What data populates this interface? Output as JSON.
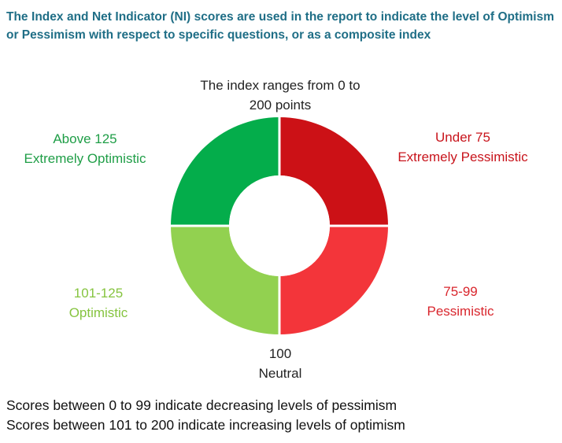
{
  "header": {
    "text": "The Index and Net Indicator (NI) scores are used in the report to indicate the level of Optimism or Pessimism with respect to specific questions, or as a composite index"
  },
  "diagram": {
    "top_label": {
      "line1": "The index ranges from 0 to",
      "line2": "200 points"
    },
    "bottom_label": {
      "line1": "100",
      "line2": "Neutral"
    },
    "segments": [
      {
        "id": "above-125",
        "range": "Above 125",
        "label": "Extremely Optimistic",
        "color": "#04ad4b",
        "label_color": "#1f9e47"
      },
      {
        "id": "under-75",
        "range": "Under 75",
        "label": "Extremely Pessimistic",
        "color": "#cc1116",
        "label_color": "#c8141c"
      },
      {
        "id": "101-125",
        "range": "101-125",
        "label": "Optimistic",
        "color": "#92d150",
        "label_color": "#86c440"
      },
      {
        "id": "75-99",
        "range": "75-99",
        "label": "Pessimistic",
        "color": "#f3353a",
        "label_color": "#d9262d"
      }
    ]
  },
  "footer": {
    "line1": "Scores between 0 to 99 indicate decreasing levels of pessimism",
    "line2": "Scores between 101 to 200 indicate increasing levels of optimism"
  }
}
